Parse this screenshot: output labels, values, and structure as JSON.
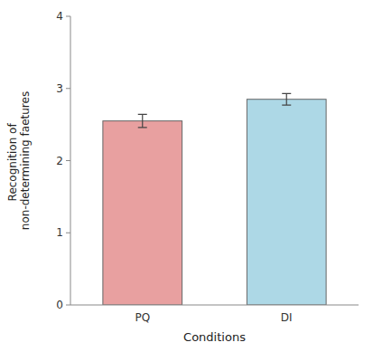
{
  "chart_data": {
    "type": "bar",
    "categories": [
      "PQ",
      "DI"
    ],
    "values": [
      2.55,
      2.85
    ],
    "errors": [
      0.09,
      0.08
    ],
    "colors": [
      "#E8A0A0",
      "#ADD8E6"
    ],
    "xlabel": "Conditions",
    "ylabel": "Recognition of \nnon-determining faetures",
    "ylim": [
      0,
      4
    ],
    "yticks": [
      0,
      1,
      2,
      3,
      4
    ],
    "grid": false
  }
}
